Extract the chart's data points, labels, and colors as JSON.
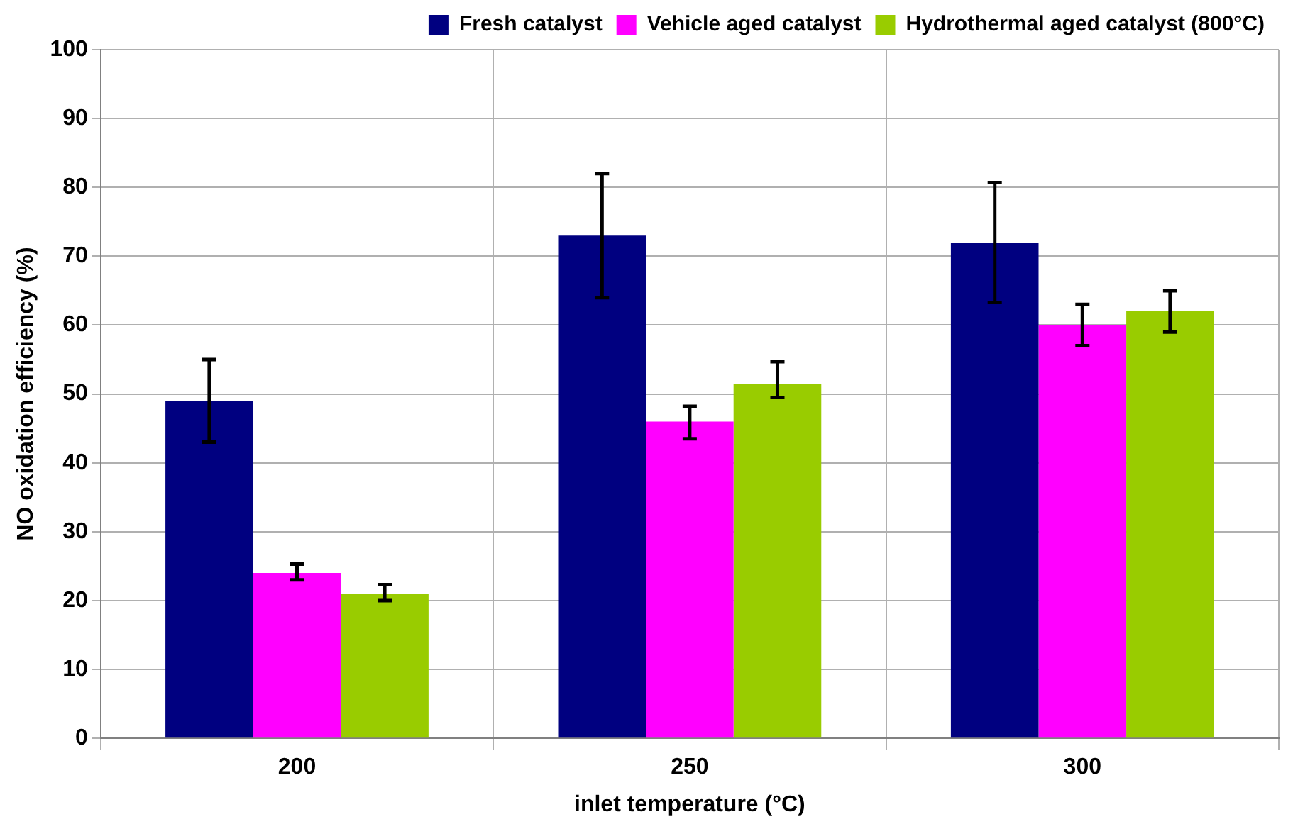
{
  "chart_data": {
    "type": "bar",
    "xlabel": "inlet temperature (°C)",
    "ylabel": "NO oxidation efficiency (%)",
    "categories": [
      "200",
      "250",
      "300"
    ],
    "series": [
      {
        "name": "Fresh catalyst",
        "color": "#000080",
        "values": [
          49,
          73,
          72
        ],
        "errors": [
          [
            43,
            55
          ],
          [
            64,
            82
          ],
          [
            63.3,
            80.7
          ]
        ]
      },
      {
        "name": "Vehicle aged catalyst",
        "color": "#ff00ff",
        "values": [
          24,
          46,
          60
        ],
        "errors": [
          [
            23,
            25.3
          ],
          [
            43.5,
            48.2
          ],
          [
            57,
            63
          ]
        ]
      },
      {
        "name": "Hydrothermal aged catalyst (800°C)",
        "color": "#99cc00",
        "values": [
          21,
          51.5,
          62
        ],
        "errors": [
          [
            20,
            22.3
          ],
          [
            49.5,
            54.7
          ],
          [
            59,
            65
          ]
        ]
      }
    ],
    "ylim": [
      0,
      100
    ],
    "yticks": [
      0,
      10,
      20,
      30,
      40,
      50,
      60,
      70,
      80,
      90,
      100
    ],
    "grid": true,
    "legend": "top right"
  }
}
